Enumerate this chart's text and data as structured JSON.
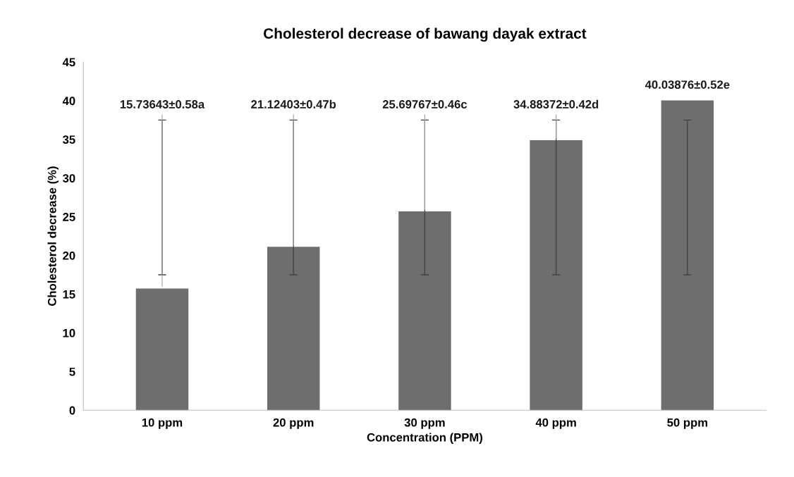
{
  "chart_data": {
    "type": "bar",
    "title": "Cholesterol decrease of bawang dayak extract",
    "xlabel": "Concentration (PPM)",
    "ylabel": "Cholesterol decrease (%)",
    "categories": [
      "10 ppm",
      "20 ppm",
      "30 ppm",
      "40 ppm",
      "50 ppm"
    ],
    "values": [
      15.73643,
      21.12403,
      25.69767,
      34.88372,
      40.03876
    ],
    "value_labels": [
      "15.73643±0.58a",
      "21.12403±0.47b",
      "25.69767±0.46c",
      "34.88372±0.42d",
      "40.03876±0.52e"
    ],
    "errors": [
      [
        17.5,
        37.5
      ],
      [
        17.5,
        37.5
      ],
      [
        17.5,
        37.5
      ],
      [
        17.5,
        37.5
      ],
      [
        17.5,
        37.5
      ]
    ],
    "color": "#6e6e6e",
    "ylim": [
      0,
      45
    ],
    "yticks": [
      0,
      5,
      10,
      15,
      20,
      25,
      30,
      35,
      40,
      45
    ],
    "grid": false
  }
}
